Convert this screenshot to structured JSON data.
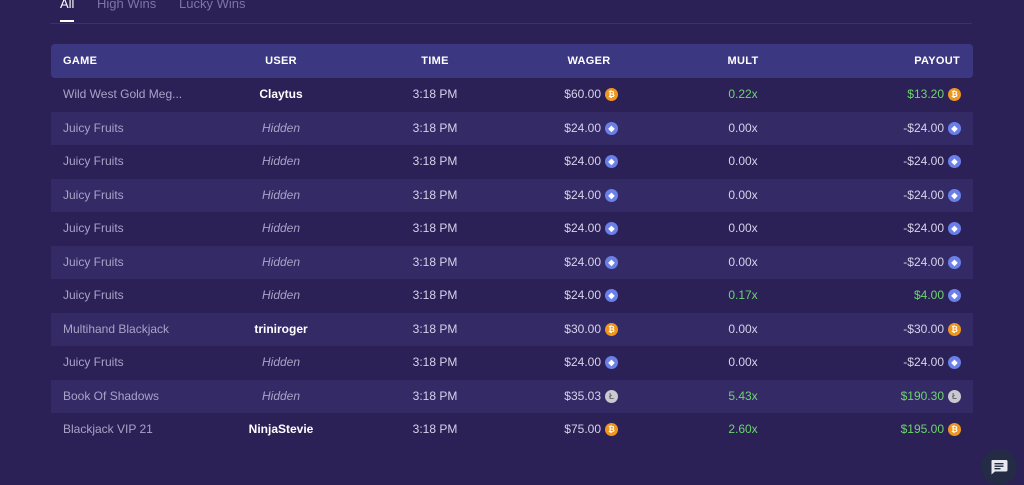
{
  "tabs": [
    {
      "label": "All",
      "active": true
    },
    {
      "label": "High Wins",
      "active": false
    },
    {
      "label": "Lucky Wins",
      "active": false
    }
  ],
  "columns": {
    "game": "GAME",
    "user": "USER",
    "time": "TIME",
    "wager": "WAGER",
    "mult": "MULT",
    "payout": "PAYOUT"
  },
  "rows": [
    {
      "game": "Wild West Gold Meg...",
      "user": "Claytus",
      "hidden": false,
      "time": "3:18 PM",
      "wager": "$60.00",
      "coin": "btc",
      "mult": "0.22x",
      "payout": "$13.20",
      "positive": true
    },
    {
      "game": "Juicy Fruits",
      "user": "Hidden",
      "hidden": true,
      "time": "3:18 PM",
      "wager": "$24.00",
      "coin": "eth",
      "mult": "0.00x",
      "payout": "-$24.00",
      "positive": false
    },
    {
      "game": "Juicy Fruits",
      "user": "Hidden",
      "hidden": true,
      "time": "3:18 PM",
      "wager": "$24.00",
      "coin": "eth",
      "mult": "0.00x",
      "payout": "-$24.00",
      "positive": false
    },
    {
      "game": "Juicy Fruits",
      "user": "Hidden",
      "hidden": true,
      "time": "3:18 PM",
      "wager": "$24.00",
      "coin": "eth",
      "mult": "0.00x",
      "payout": "-$24.00",
      "positive": false
    },
    {
      "game": "Juicy Fruits",
      "user": "Hidden",
      "hidden": true,
      "time": "3:18 PM",
      "wager": "$24.00",
      "coin": "eth",
      "mult": "0.00x",
      "payout": "-$24.00",
      "positive": false
    },
    {
      "game": "Juicy Fruits",
      "user": "Hidden",
      "hidden": true,
      "time": "3:18 PM",
      "wager": "$24.00",
      "coin": "eth",
      "mult": "0.00x",
      "payout": "-$24.00",
      "positive": false
    },
    {
      "game": "Juicy Fruits",
      "user": "Hidden",
      "hidden": true,
      "time": "3:18 PM",
      "wager": "$24.00",
      "coin": "eth",
      "mult": "0.17x",
      "payout": "$4.00",
      "positive": true
    },
    {
      "game": "Multihand Blackjack",
      "user": "triniroger",
      "hidden": false,
      "time": "3:18 PM",
      "wager": "$30.00",
      "coin": "btc",
      "mult": "0.00x",
      "payout": "-$30.00",
      "positive": false
    },
    {
      "game": "Juicy Fruits",
      "user": "Hidden",
      "hidden": true,
      "time": "3:18 PM",
      "wager": "$24.00",
      "coin": "eth",
      "mult": "0.00x",
      "payout": "-$24.00",
      "positive": false
    },
    {
      "game": "Book Of Shadows",
      "user": "Hidden",
      "hidden": true,
      "time": "3:18 PM",
      "wager": "$35.03",
      "coin": "ltc",
      "mult": "5.43x",
      "payout": "$190.30",
      "positive": true
    },
    {
      "game": "Blackjack VIP 21",
      "user": "NinjaStevie",
      "hidden": false,
      "time": "3:18 PM",
      "wager": "$75.00",
      "coin": "btc",
      "mult": "2.60x",
      "payout": "$195.00",
      "positive": true
    }
  ],
  "icons": {
    "btc": "bitcoin-icon",
    "eth": "ethereum-icon",
    "ltc": "litecoin-icon",
    "chat": "chat-icon"
  },
  "colors": {
    "background": "#2b2156",
    "header": "#3c3781",
    "row_alt": "#342a66",
    "positive": "#6ed46e",
    "btc": "#f0961f",
    "eth": "#6a7fe8",
    "ltc": "#c9c9cf"
  }
}
